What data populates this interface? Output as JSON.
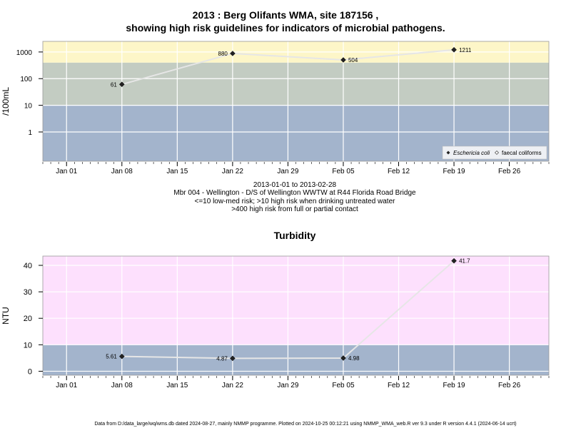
{
  "footer": "Data from D:/data_large/wq/wms.db dated 2024-08-27, mainly NMMP programme. Plotted on 2024-10-25 00:12:21 using NMMP_WMA_web.R ver 9.3 under R version 4.4.1 (2024-06-14 ucrt)",
  "chart_data": [
    {
      "type": "line",
      "title": "2013 : Berg Olifants WMA, site 187156 ,",
      "subtitle": "showing high risk guidelines for indicators of microbial pathogens.",
      "xlabel": "",
      "ylabel": "/100mL",
      "yscale": "log",
      "ylim": [
        0.08,
        2500
      ],
      "xlim": [
        "2012-12-29",
        "2013-03-03"
      ],
      "x_ticks": [
        "Jan 01",
        "Jan 08",
        "Jan 15",
        "Jan 22",
        "Jan 29",
        "Feb 05",
        "Feb 12",
        "Feb 19",
        "Feb 26"
      ],
      "x_tick_dates": [
        "2013-01-01",
        "2013-01-08",
        "2013-01-15",
        "2013-01-22",
        "2013-01-29",
        "2013-02-05",
        "2013-02-12",
        "2013-02-19",
        "2013-02-26"
      ],
      "y_ticks": [
        1,
        10,
        100,
        1000
      ],
      "y_tick_labels": [
        "1",
        "10",
        "100",
        "1000"
      ],
      "grid": true,
      "bands": [
        {
          "from": 0.08,
          "to": 10,
          "color": "#a3b4cc"
        },
        {
          "from": 10,
          "to": 400,
          "color": "#c3ccc2"
        },
        {
          "from": 400,
          "to": 2500,
          "color": "#fdf6c8"
        }
      ],
      "series": [
        {
          "name": "Eschericia coli",
          "marker": "filled-diamond",
          "x": [
            "2013-01-08",
            "2013-01-22",
            "2013-02-05",
            "2013-02-19"
          ],
          "values": [
            61,
            880,
            504,
            1211
          ],
          "labels": [
            "61",
            "880",
            "504",
            "1211"
          ],
          "label_side": [
            "left",
            "left",
            "right",
            "right"
          ]
        }
      ],
      "legend": {
        "position": "bottom-right",
        "entries": [
          "Eschericia coli",
          "faecal coliforms"
        ]
      },
      "notes": [
        "2013-01-01 to 2013-02-28",
        "Mbr 004 - Wellington - D/S of Wellington WWTW at R44 Florida Road Bridge",
        "<=10 low-med risk; >10 high risk when drinking untreated water",
        ">400 high risk from full or partial contact"
      ]
    },
    {
      "type": "line",
      "title": "Turbidity",
      "xlabel": "",
      "ylabel": "NTU",
      "yscale": "linear",
      "ylim": [
        -1.5,
        43.5
      ],
      "xlim": [
        "2012-12-29",
        "2013-03-03"
      ],
      "x_ticks": [
        "Jan 01",
        "Jan 08",
        "Jan 15",
        "Jan 22",
        "Jan 29",
        "Feb 05",
        "Feb 12",
        "Feb 19",
        "Feb 26"
      ],
      "x_tick_dates": [
        "2013-01-01",
        "2013-01-08",
        "2013-01-15",
        "2013-01-22",
        "2013-01-29",
        "2013-02-05",
        "2013-02-12",
        "2013-02-19",
        "2013-02-26"
      ],
      "y_ticks": [
        0,
        10,
        20,
        30,
        40
      ],
      "y_tick_labels": [
        "0",
        "10",
        "20",
        "30",
        "40"
      ],
      "grid": true,
      "bands": [
        {
          "from": -1.5,
          "to": 10,
          "color": "#a3b4cc"
        },
        {
          "from": 10,
          "to": 43.5,
          "color": "#fde0fd"
        }
      ],
      "series": [
        {
          "marker": "filled-diamond",
          "x": [
            "2013-01-08",
            "2013-01-22",
            "2013-02-05",
            "2013-02-19"
          ],
          "values": [
            5.61,
            4.87,
            4.98,
            41.7
          ],
          "labels": [
            "5.61",
            "4.87",
            "4.98",
            "41.7"
          ],
          "label_side": [
            "left",
            "left",
            "right",
            "right"
          ]
        }
      ]
    }
  ]
}
